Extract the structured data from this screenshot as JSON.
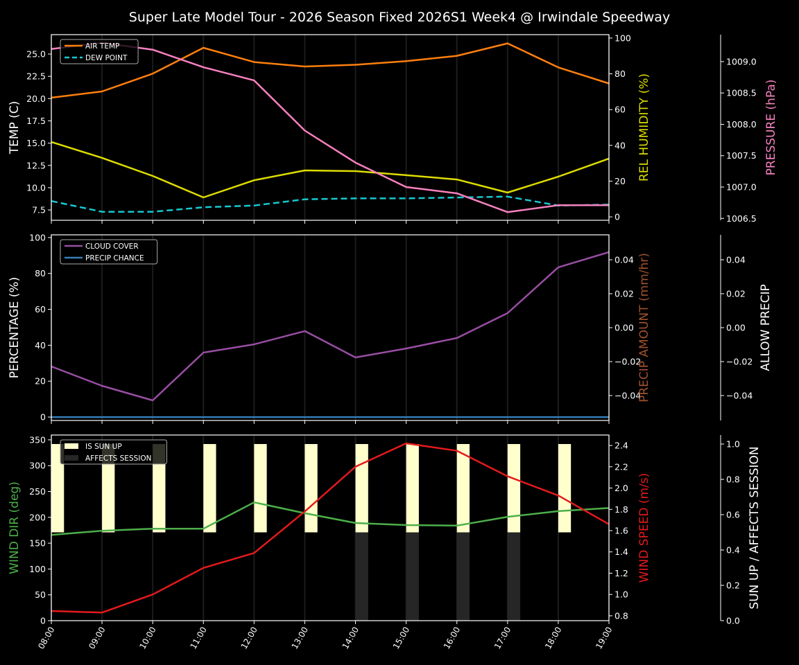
{
  "chart_data": {
    "type": "line",
    "title": "Super Late Model Tour - 2026 Season Fixed 2026S1 Week4 @ Irwindale Speedway",
    "x": [
      "08:00",
      "09:00",
      "10:00",
      "11:00",
      "12:00",
      "13:00",
      "14:00",
      "15:00",
      "16:00",
      "17:00",
      "18:00",
      "19:00"
    ],
    "grid": "vertical lines at each hour",
    "panels": [
      {
        "axes": [
          {
            "id": "temp",
            "side": "left",
            "label": "TEMP (C)",
            "label_color": "#ffffff",
            "range": [
              6.34,
              27.18
            ],
            "ticks": [
              "7.5",
              "10.0",
              "12.5",
              "15.0",
              "17.5",
              "20.0",
              "22.5",
              "25.0"
            ]
          },
          {
            "id": "rh",
            "side": "right",
            "label": "REL HUMIDITY (%)",
            "label_color": "#dddd00",
            "range": [
              -1.9,
              101.9
            ],
            "ticks": [
              "0",
              "20",
              "40",
              "60",
              "80",
              "100"
            ]
          },
          {
            "id": "pres",
            "side": "right-outer",
            "label": "PRESSURE (hPa)",
            "label_color": "#f781bf",
            "range": [
              1006.47,
              1009.43
            ],
            "ticks": [
              "1006.5",
              "1007.0",
              "1007.5",
              "1008.0",
              "1008.5",
              "1009.0"
            ]
          }
        ],
        "series": [
          {
            "name": "AIR TEMP",
            "axis": "temp",
            "color": "#ff7f0e",
            "dash": false,
            "values": [
              20.1,
              20.8,
              22.8,
              25.7,
              24.1,
              23.6,
              23.8,
              24.2,
              24.8,
              26.2,
              23.5,
              21.7
            ]
          },
          {
            "name": "DEW POINT",
            "axis": "temp",
            "color": "#17c8d0",
            "dash": true,
            "values": [
              8.5,
              7.3,
              7.3,
              7.8,
              8.0,
              8.7,
              8.8,
              8.8,
              8.9,
              9.0,
              8.0,
              8.1
            ]
          },
          {
            "axis": "rh",
            "color": "#dddd00",
            "dash": false,
            "values": [
              41.9,
              33.0,
              22.9,
              10.9,
              20.5,
              26.0,
              25.6,
              23.3,
              20.9,
              13.6,
              22.5,
              32.6
            ]
          },
          {
            "axis": "pres",
            "color": "#f781bf",
            "dash": false,
            "values": [
              1009.2,
              1009.3,
              1009.19,
              1008.91,
              1008.7,
              1007.9,
              1007.39,
              1007.0,
              1006.9,
              1006.6,
              1006.71,
              1006.71
            ]
          }
        ],
        "legend": {
          "placement": "top-left",
          "entries": [
            {
              "label": "AIR TEMP",
              "color": "#ff7f0e",
              "style": "line"
            },
            {
              "label": "DEW POINT",
              "color": "#17c8d0",
              "style": "dash"
            }
          ]
        }
      },
      {
        "axes": [
          {
            "id": "pct",
            "side": "left",
            "label": "PERCENTAGE (%)",
            "label_color": "#ffffff",
            "range": [
              -1.9,
              101.5
            ],
            "ticks": [
              "0",
              "20",
              "40",
              "60",
              "80",
              "100"
            ]
          },
          {
            "id": "pamt",
            "side": "right",
            "label": "PRECIP AMOUNT (mm/hr)",
            "label_color": "#a0522d",
            "range": [
              -0.0547,
              0.0547
            ],
            "ticks": [
              "−0.04",
              "−0.02",
              "0.00",
              "0.02",
              "0.04"
            ]
          },
          {
            "id": "allow",
            "side": "right-outer",
            "label": "ALLOW PRECIP",
            "label_color": "#ffffff",
            "range": [
              -0.0547,
              0.0547
            ],
            "ticks": [
              "−0.04",
              "−0.02",
              "0.00",
              "0.02",
              "0.04"
            ]
          }
        ],
        "series": [
          {
            "name": "CLOUD COVER",
            "axis": "pct",
            "color": "#984ea3",
            "dash": false,
            "values": [
              28.2,
              17.4,
              9.3,
              35.9,
              40.5,
              47.9,
              33.2,
              38.2,
              44.0,
              57.9,
              83.4,
              91.9
            ]
          },
          {
            "name": "PRECIP CHANCE",
            "axis": "pct",
            "color": "#377eb8",
            "dash": false,
            "values": [
              0,
              0,
              0,
              0,
              0,
              0,
              0,
              0,
              0,
              0,
              0,
              0
            ]
          }
        ],
        "legend": {
          "placement": "top-left",
          "entries": [
            {
              "label": "CLOUD COVER",
              "color": "#984ea3",
              "style": "line"
            },
            {
              "label": "PRECIP CHANCE",
              "color": "#377eb8",
              "style": "line"
            }
          ]
        }
      },
      {
        "axes": [
          {
            "id": "wdir",
            "side": "left",
            "label": "WIND DIR (deg)",
            "label_color": "#4daf4a",
            "range": [
              0,
              359.3
            ],
            "ticks": [
              "0",
              "50",
              "100",
              "150",
              "200",
              "250",
              "300",
              "350"
            ]
          },
          {
            "id": "wspd",
            "side": "right",
            "label": "WIND SPEED (m/s)",
            "label_color": "#e41a1c",
            "range": [
              0.754,
              2.498
            ],
            "ticks": [
              "0.8",
              "1.0",
              "1.2",
              "1.4",
              "1.6",
              "1.8",
              "2.0",
              "2.2",
              "2.4"
            ]
          },
          {
            "id": "sun",
            "side": "right-outer",
            "label": "SUN UP / AFFECTS SESSION",
            "label_color": "#ffffff",
            "range": [
              0,
              1.051
            ],
            "ticks": [
              "0.0",
              "0.2",
              "0.4",
              "0.6",
              "0.8",
              "1.0"
            ]
          }
        ],
        "bars": [
          {
            "name": "IS SUN UP",
            "axis": "sun",
            "color": "#ffffcc",
            "base": 0.5,
            "values": [
              1,
              1,
              1,
              1,
              1,
              1,
              1,
              1,
              1,
              1,
              1,
              0
            ]
          },
          {
            "name": "AFFECTS SESSION",
            "axis": "sun",
            "color": "#262626",
            "base": 0,
            "values": [
              0,
              0,
              0,
              0,
              0,
              0,
              1,
              1,
              1,
              1,
              0,
              0
            ]
          }
        ],
        "series": [
          {
            "axis": "wdir",
            "color": "#4daf4a",
            "dash": false,
            "values": [
              166,
              174,
              178,
              178,
              229,
              208,
              189,
              185,
              184,
              201,
              212,
              218
            ]
          },
          {
            "axis": "wspd",
            "color": "#e41a1c",
            "dash": false,
            "values": [
              0.845,
              0.83,
              1.0,
              1.25,
              1.39,
              1.78,
              2.2,
              2.42,
              2.35,
              2.11,
              1.93,
              1.66
            ]
          }
        ],
        "legend": {
          "placement": "top-left",
          "entries": [
            {
              "label": "IS SUN UP",
              "color": "#ffffcc",
              "style": "patch"
            },
            {
              "label": "AFFECTS SESSION",
              "color": "#262626",
              "style": "patch"
            }
          ]
        }
      }
    ]
  }
}
